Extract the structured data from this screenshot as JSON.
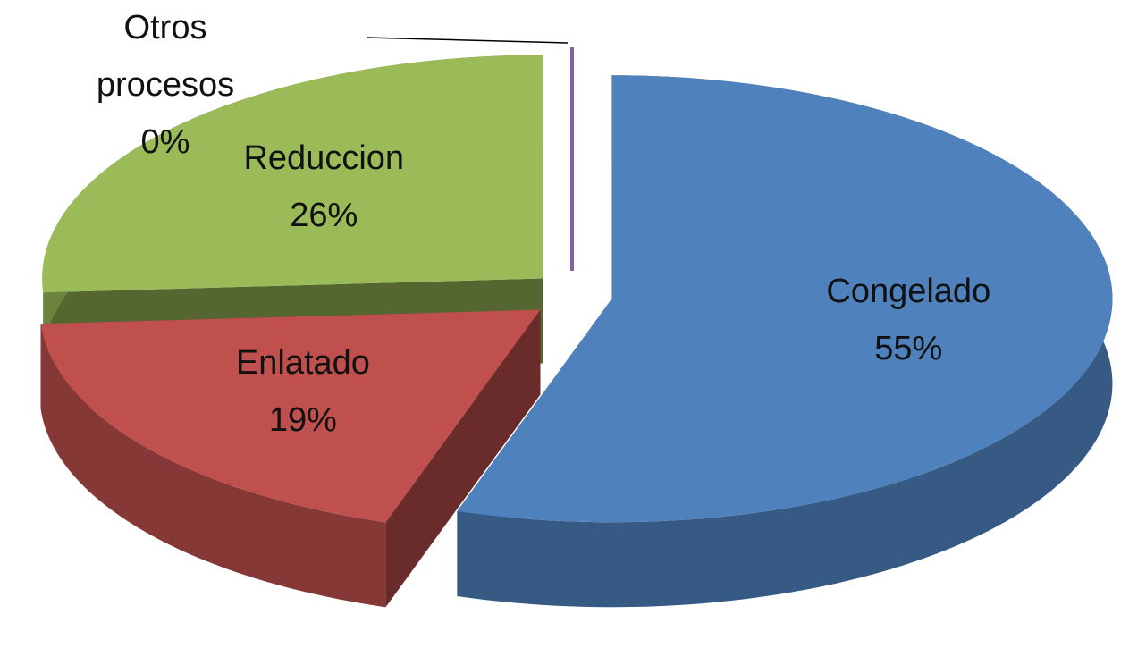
{
  "chart_data": {
    "type": "pie",
    "three_d": true,
    "exploded": true,
    "categories": [
      "Congelado",
      "Enlatado",
      "Reduccion",
      "Otros procesos"
    ],
    "values": [
      55,
      19,
      26,
      0
    ],
    "value_labels": [
      "55%",
      "19%",
      "26%",
      "0%"
    ],
    "colors": [
      "#4f81bd",
      "#c0504d",
      "#9bbb59",
      "#8064a2"
    ]
  }
}
